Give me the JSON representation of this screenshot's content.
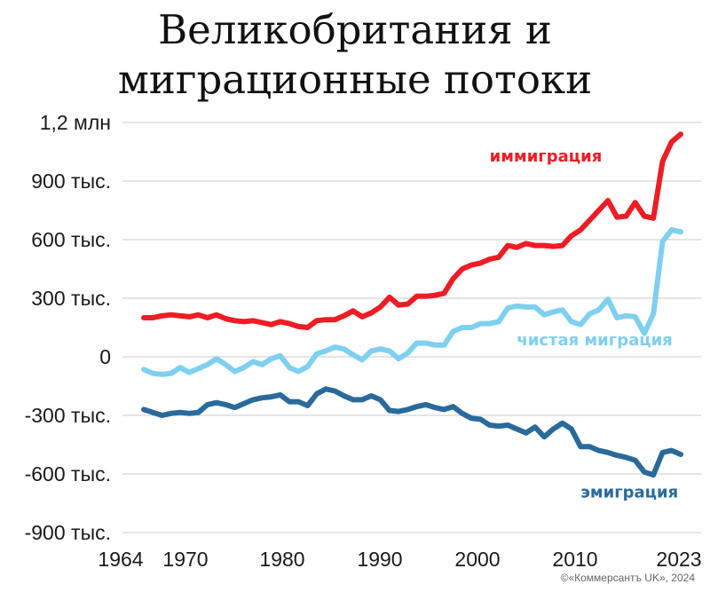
{
  "chart_data": {
    "type": "line",
    "title_lines": [
      "Великобритания и",
      "миграционные потоки"
    ],
    "xlabel": "",
    "ylabel": "",
    "xlim": [
      1964,
      2023
    ],
    "ylim": [
      -900000,
      1200000
    ],
    "x_ticks": [
      1964,
      1970,
      1980,
      1990,
      2000,
      2010,
      2023
    ],
    "x_tick_labels": [
      "1964",
      "1970",
      "1980",
      "1990",
      "2000",
      "2010",
      "2023"
    ],
    "y_ticks": [
      1200000,
      900000,
      600000,
      300000,
      0,
      -300000,
      -600000,
      -900000
    ],
    "y_tick_labels": [
      "1,2 млн",
      "900 тыс.",
      "600 тыс.",
      "300 тыс.",
      "0",
      "-300 тыс.",
      "-600 тыс.",
      "-900 тыс."
    ],
    "grid": true,
    "series": [
      {
        "name": "иммиграция",
        "color": "#ee1c24",
        "x": [
          1964,
          1965,
          1966,
          1967,
          1968,
          1969,
          1970,
          1971,
          1972,
          1973,
          1974,
          1975,
          1976,
          1977,
          1978,
          1979,
          1980,
          1981,
          1982,
          1983,
          1984,
          1985,
          1986,
          1987,
          1988,
          1989,
          1990,
          1991,
          1992,
          1993,
          1994,
          1995,
          1996,
          1997,
          1998,
          1999,
          2000,
          2001,
          2002,
          2003,
          2004,
          2005,
          2006,
          2007,
          2008,
          2009,
          2010,
          2011,
          2012,
          2013,
          2014,
          2015,
          2016,
          2017,
          2018,
          2019,
          2020,
          2021,
          2022,
          2023
        ],
        "values": [
          200000,
          200000,
          210000,
          215000,
          210000,
          205000,
          215000,
          200000,
          215000,
          195000,
          185000,
          180000,
          185000,
          175000,
          165000,
          180000,
          170000,
          155000,
          150000,
          185000,
          190000,
          190000,
          210000,
          235000,
          205000,
          225000,
          255000,
          305000,
          265000,
          270000,
          310000,
          310000,
          315000,
          325000,
          400000,
          450000,
          470000,
          480000,
          500000,
          510000,
          570000,
          560000,
          580000,
          570000,
          570000,
          565000,
          570000,
          620000,
          650000,
          700000,
          750000,
          800000,
          715000,
          720000,
          790000,
          720000,
          710000,
          1000000,
          1100000,
          1140000
        ]
      },
      {
        "name": "чистая миграция",
        "color": "#7fd0f0",
        "x": [
          1964,
          1965,
          1966,
          1967,
          1968,
          1969,
          1970,
          1971,
          1972,
          1973,
          1974,
          1975,
          1976,
          1977,
          1978,
          1979,
          1980,
          1981,
          1982,
          1983,
          1984,
          1985,
          1986,
          1987,
          1988,
          1989,
          1990,
          1991,
          1992,
          1993,
          1994,
          1995,
          1996,
          1997,
          1998,
          1999,
          2000,
          2001,
          2002,
          2003,
          2004,
          2005,
          2006,
          2007,
          2008,
          2009,
          2010,
          2011,
          2012,
          2013,
          2014,
          2015,
          2016,
          2017,
          2018,
          2019,
          2020,
          2021,
          2022,
          2023
        ],
        "values": [
          -65000,
          -85000,
          -90000,
          -85000,
          -55000,
          -80000,
          -60000,
          -40000,
          -10000,
          -40000,
          -75000,
          -55000,
          -25000,
          -40000,
          -10000,
          5000,
          -55000,
          -75000,
          -50000,
          15000,
          30000,
          50000,
          40000,
          10000,
          -15000,
          30000,
          40000,
          30000,
          -10000,
          20000,
          70000,
          70000,
          60000,
          60000,
          130000,
          150000,
          150000,
          170000,
          170000,
          180000,
          250000,
          260000,
          255000,
          255000,
          215000,
          230000,
          240000,
          180000,
          165000,
          220000,
          240000,
          295000,
          200000,
          210000,
          205000,
          120000,
          220000,
          590000,
          650000,
          640000
        ]
      },
      {
        "name": "эмиграция",
        "color": "#2a6a9b",
        "x": [
          1964,
          1965,
          1966,
          1967,
          1968,
          1969,
          1970,
          1971,
          1972,
          1973,
          1974,
          1975,
          1976,
          1977,
          1978,
          1979,
          1980,
          1981,
          1982,
          1983,
          1984,
          1985,
          1986,
          1987,
          1988,
          1989,
          1990,
          1991,
          1992,
          1993,
          1994,
          1995,
          1996,
          1997,
          1998,
          1999,
          2000,
          2001,
          2002,
          2003,
          2004,
          2005,
          2006,
          2007,
          2008,
          2009,
          2010,
          2011,
          2012,
          2013,
          2014,
          2015,
          2016,
          2017,
          2018,
          2019,
          2020,
          2021,
          2022,
          2023
        ],
        "values": [
          -270000,
          -285000,
          -300000,
          -290000,
          -285000,
          -290000,
          -285000,
          -245000,
          -235000,
          -245000,
          -260000,
          -240000,
          -220000,
          -210000,
          -205000,
          -195000,
          -230000,
          -230000,
          -250000,
          -190000,
          -165000,
          -175000,
          -200000,
          -220000,
          -220000,
          -200000,
          -220000,
          -275000,
          -280000,
          -270000,
          -255000,
          -245000,
          -260000,
          -270000,
          -255000,
          -290000,
          -315000,
          -320000,
          -350000,
          -355000,
          -350000,
          -370000,
          -390000,
          -360000,
          -410000,
          -370000,
          -340000,
          -370000,
          -460000,
          -460000,
          -480000,
          -490000,
          -505000,
          -515000,
          -530000,
          -590000,
          -605000,
          -490000,
          -480000,
          -500000
        ]
      }
    ],
    "series_labels": [
      {
        "text": "иммиграция",
        "x": 2002,
        "y": 1000000
      },
      {
        "text": "чистая миграция",
        "x": 2005,
        "y": 60000
      },
      {
        "text": "эмиграция",
        "x": 2012,
        "y": -720000
      }
    ]
  },
  "copyright": "©«Коммерсантъ UK», 2024",
  "colors": {
    "grid": "#c8c8c8",
    "text": "#1a1a1a"
  }
}
